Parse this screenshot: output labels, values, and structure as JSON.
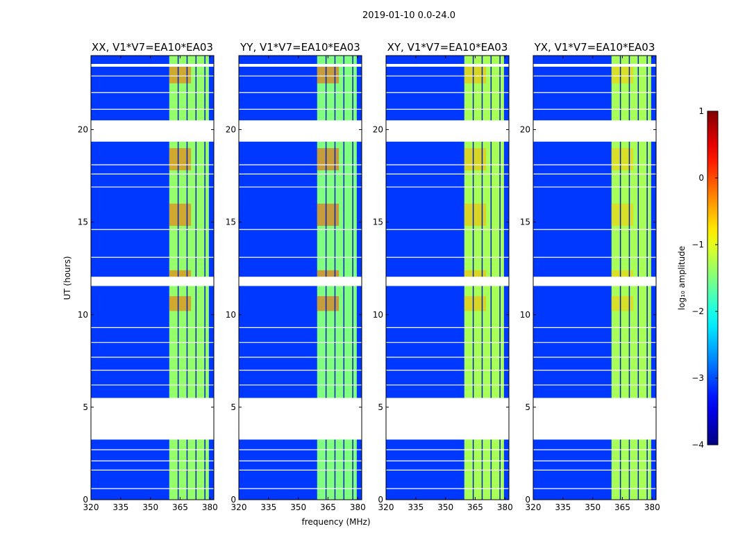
{
  "chart_data": {
    "type": "heatmap",
    "suptitle": "2019-01-10 0.0-24.0",
    "xlabel": "frequency (MHz)",
    "ylabel": "UT (hours)",
    "xlim": [
      320,
      382
    ],
    "ylim": [
      0,
      24
    ],
    "xticks": [
      "320",
      "335",
      "350",
      "365",
      "380"
    ],
    "yticks": [
      "0",
      "5",
      "10",
      "15",
      "20"
    ],
    "panels": [
      {
        "title": "XX, V1*V7=EA10*EA03",
        "band_level": -1.4,
        "hot_level": -0.1
      },
      {
        "title": "YY, V1*V7=EA10*EA03",
        "band_level": -1.5,
        "hot_level": 0.0
      },
      {
        "title": "XY, V1*V7=EA10*EA03",
        "band_level": -1.3,
        "hot_level": -0.5
      },
      {
        "title": "YX, V1*V7=EA10*EA03",
        "band_level": -1.3,
        "hot_level": -0.6
      }
    ],
    "background_level": -3.1,
    "band_mhz": [
      359.5,
      379.5
    ],
    "data_gaps_hours": [
      [
        3.25,
        5.5
      ],
      [
        11.55,
        12.05
      ],
      [
        19.35,
        20.5
      ],
      [
        23.4,
        23.55
      ]
    ],
    "colorbar": {
      "label": "log₁₀ amplitude",
      "ticks": [
        "1",
        "0",
        "−1",
        "−2",
        "−3",
        "−4"
      ],
      "range": [
        -4,
        1
      ],
      "colormap": "jet"
    }
  }
}
